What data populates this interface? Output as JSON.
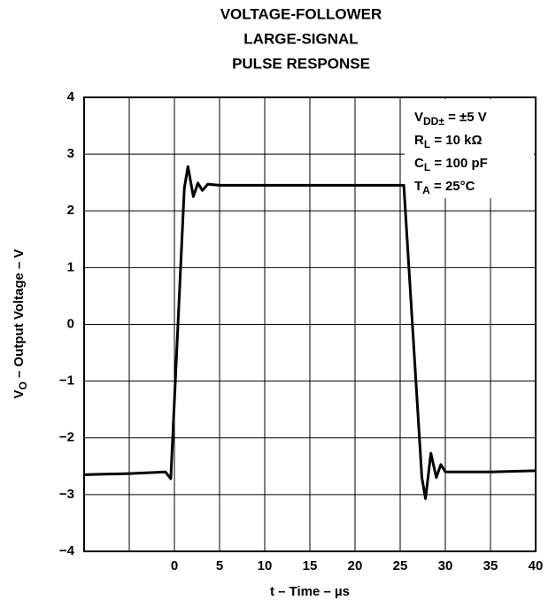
{
  "chart_data": {
    "type": "line",
    "title": [
      "VOLTAGE-FOLLOWER",
      "LARGE-SIGNAL",
      "PULSE RESPONSE"
    ],
    "xlabel": "t – Time – µs",
    "ylabel": {
      "main": "V",
      "sub": "O",
      "rest": " – Output Voltage – V"
    },
    "annotations": [
      {
        "main": "V",
        "sub": "DD±",
        "rest": " = ±5 V"
      },
      {
        "main": "R",
        "sub": "L",
        "rest": " = 10 kΩ"
      },
      {
        "main": "C",
        "sub": "L",
        "rest": " = 100 pF"
      },
      {
        "main": "T",
        "sub": "A",
        "rest": " = 25°C"
      }
    ],
    "x": [
      -10,
      -5,
      -1,
      -0.4,
      1.1,
      1.5,
      2.1,
      2.6,
      3.1,
      3.7,
      5,
      10,
      15,
      20,
      25,
      25.4,
      27.4,
      27.8,
      28.4,
      29,
      29.5,
      30,
      35,
      40
    ],
    "series": [
      {
        "color": "#000000",
        "values": [
          -2.65,
          -2.63,
          -2.6,
          -2.72,
          2.4,
          2.78,
          2.25,
          2.49,
          2.36,
          2.47,
          2.45,
          2.45,
          2.45,
          2.45,
          2.45,
          2.45,
          -2.7,
          -3.07,
          -2.27,
          -2.7,
          -2.47,
          -2.6,
          -2.6,
          -2.58
        ]
      }
    ],
    "xlim": [
      -10,
      40
    ],
    "xticks": [
      0,
      5,
      10,
      15,
      20,
      25,
      30,
      35,
      40
    ],
    "xgrid_at": [
      -5,
      0,
      5,
      10,
      15,
      20,
      25,
      30,
      35
    ],
    "ylim": [
      -4,
      4
    ],
    "yticks": [
      {
        "value": -4,
        "label": "−4"
      },
      {
        "value": -3,
        "label": "−3"
      },
      {
        "value": -2,
        "label": "−2"
      },
      {
        "value": -1,
        "label": "−1"
      },
      0,
      1,
      2,
      3,
      4
    ],
    "grid": true
  }
}
